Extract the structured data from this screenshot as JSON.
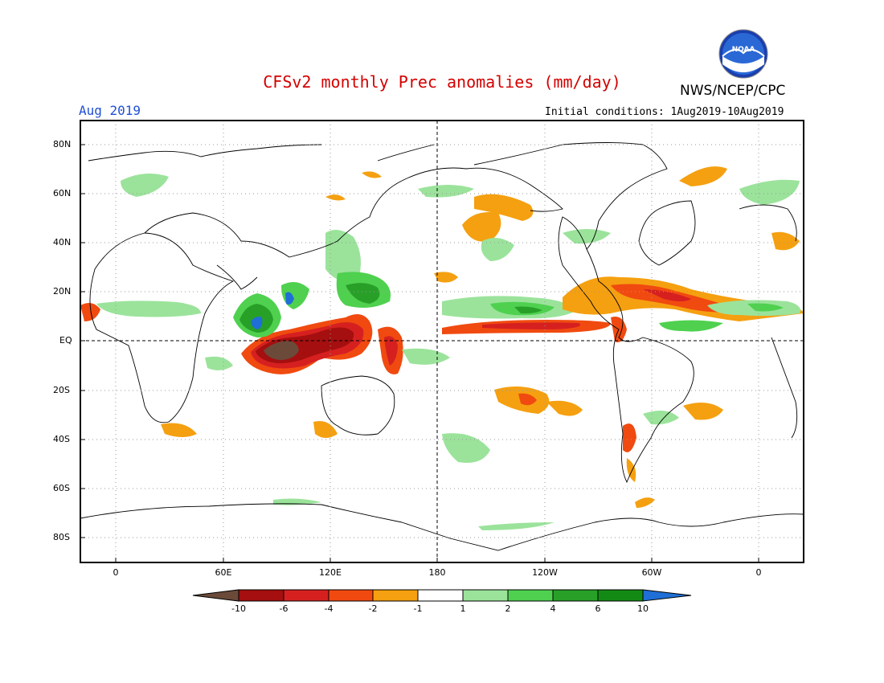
{
  "header": {
    "title": "CFSv2 monthly Prec anomalies (mm/day)",
    "month": "Aug 2019",
    "agency": "NWS/NCEP/CPC",
    "logo_text": "NOAA",
    "initial_conditions": "Initial conditions: 1Aug2019-10Aug2019"
  },
  "map": {
    "lat_labels": [
      "80N",
      "60N",
      "40N",
      "20N",
      "EQ",
      "20S",
      "40S",
      "60S",
      "80S"
    ],
    "lon_labels": [
      "0",
      "60E",
      "120E",
      "180",
      "120W",
      "60W",
      "0"
    ],
    "grid": "dotted every 20 degrees"
  },
  "colorbar": {
    "labels": [
      "-10",
      "-6",
      "-4",
      "-2",
      "-1",
      "1",
      "2",
      "4",
      "6",
      "10"
    ],
    "colors": [
      "#6b4a3a",
      "#a50f0f",
      "#d62020",
      "#f04a10",
      "#f5a010",
      "#ffffff",
      "#9be39b",
      "#4fd14f",
      "#28a028",
      "#138a13",
      "#1f6fd6"
    ]
  }
}
